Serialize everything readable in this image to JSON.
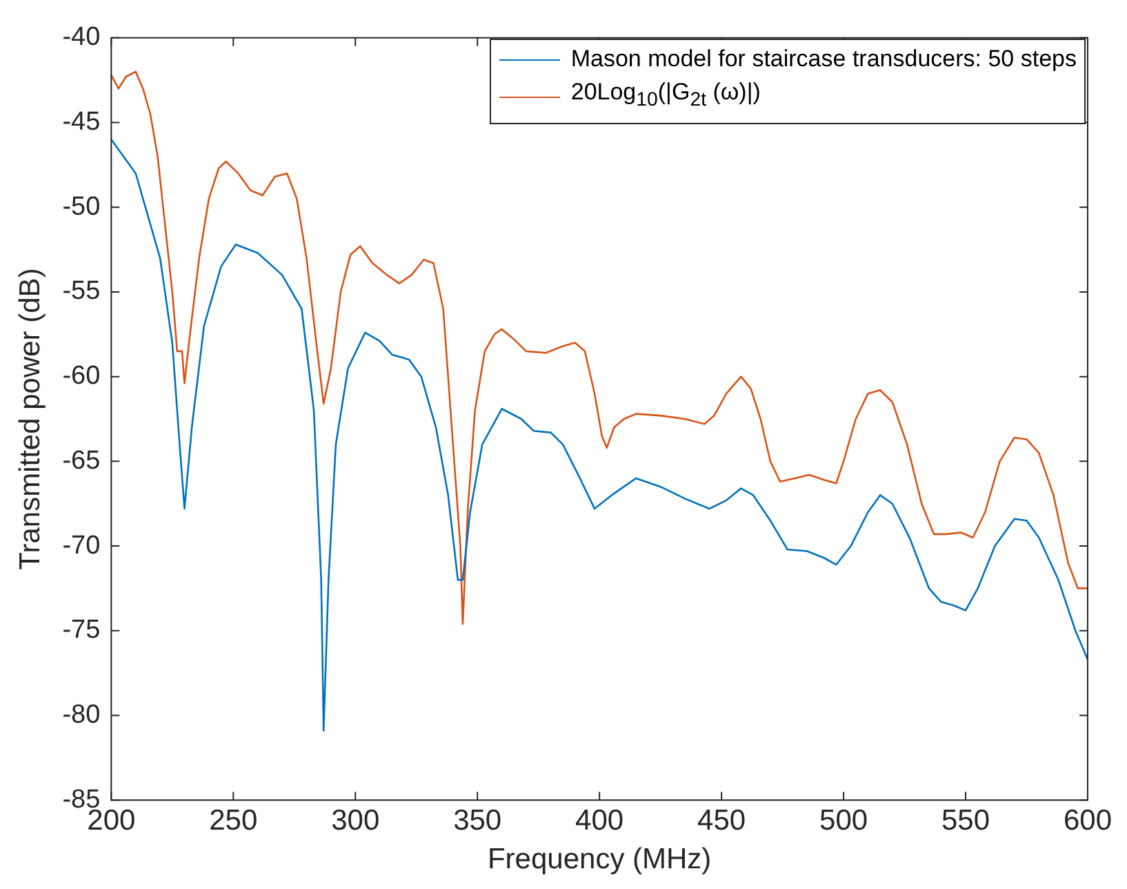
{
  "chart_data": {
    "type": "line",
    "xlabel": "Frequency (MHz)",
    "ylabel": "Transmitted power (dB)",
    "xlim": [
      200,
      600
    ],
    "xticks": [
      200,
      250,
      300,
      350,
      400,
      450,
      500,
      550,
      600
    ],
    "ylim": [
      -85,
      -40
    ],
    "yticks": [
      -85,
      -80,
      -75,
      -70,
      -65,
      -60,
      -55,
      -50,
      -45,
      -40
    ],
    "grid": false,
    "legend": "top right",
    "marker": "none",
    "line_style": "solid",
    "series": [
      {
        "name": "Mason model for staircase transducers: 50 steps",
        "color": "#0072bd",
        "x": [
          200,
          210,
          220,
          225,
          228,
          230,
          233,
          238,
          245,
          251,
          260,
          270,
          278,
          283,
          286,
          287,
          289,
          292,
          297,
          304,
          310,
          315,
          322,
          327,
          333,
          338,
          342,
          344,
          347,
          352,
          360,
          368,
          373,
          380,
          385,
          392,
          398,
          405,
          415,
          425,
          435,
          445,
          452,
          458,
          463,
          470,
          477,
          485,
          492,
          497,
          503,
          510,
          515,
          520,
          527,
          535,
          540,
          545,
          550,
          555,
          562,
          570,
          575,
          580,
          588,
          595,
          600
        ],
        "values": [
          -46,
          -48,
          -53,
          -58,
          -64,
          -67.8,
          -63,
          -57,
          -53.5,
          -52.2,
          -52.7,
          -54,
          -56,
          -62,
          -72,
          -80.9,
          -72,
          -64,
          -59.5,
          -57.4,
          -57.9,
          -58.7,
          -59,
          -60,
          -63,
          -67,
          -72,
          -72,
          -68,
          -64,
          -61.9,
          -62.5,
          -63.2,
          -63.3,
          -64,
          -66,
          -67.8,
          -67,
          -66,
          -66.5,
          -67.2,
          -67.8,
          -67.3,
          -66.6,
          -67,
          -68.5,
          -70.2,
          -70.3,
          -70.7,
          -71.1,
          -70,
          -68,
          -67,
          -67.5,
          -69.5,
          -72.5,
          -73.3,
          -73.5,
          -73.8,
          -72.5,
          -70,
          -68.4,
          -68.5,
          -69.5,
          -72,
          -75,
          -76.7
        ]
      },
      {
        "name": "20Log$_{10}$(|G$_{2t}$ (ω)|)",
        "color": "#d95319",
        "x": [
          200,
          203,
          206,
          210,
          213,
          216,
          219,
          222,
          225,
          227,
          229,
          230,
          232,
          236,
          240,
          244,
          247,
          252,
          257,
          262,
          267,
          272,
          276,
          280,
          284,
          287,
          290,
          294,
          298,
          302,
          307,
          313,
          318,
          323,
          328,
          332,
          336,
          340,
          343,
          344,
          346,
          349,
          353,
          357,
          360,
          365,
          370,
          378,
          385,
          390,
          394,
          398,
          401,
          403,
          406,
          410,
          415,
          425,
          435,
          443,
          447,
          452,
          458,
          462,
          466,
          470,
          474,
          480,
          486,
          492,
          497,
          500,
          505,
          510,
          515,
          520,
          526,
          532,
          537,
          542,
          548,
          553,
          558,
          564,
          570,
          575,
          580,
          586,
          592,
          596,
          600
        ],
        "values": [
          -42.2,
          -43,
          -42.3,
          -42,
          -43,
          -44.5,
          -47,
          -51,
          -55,
          -58.5,
          -58.5,
          -60.4,
          -57.8,
          -53,
          -49.5,
          -47.7,
          -47.3,
          -48,
          -49,
          -49.3,
          -48.2,
          -48,
          -49.5,
          -53,
          -58,
          -61.6,
          -59.5,
          -55,
          -52.8,
          -52.3,
          -53.3,
          -54,
          -54.5,
          -54,
          -53.1,
          -53.3,
          -56,
          -64,
          -70,
          -74.6,
          -68,
          -62,
          -58.5,
          -57.5,
          -57.2,
          -57.8,
          -58.5,
          -58.6,
          -58.2,
          -58,
          -58.5,
          -61,
          -63.5,
          -64.2,
          -63,
          -62.5,
          -62.2,
          -62.3,
          -62.5,
          -62.8,
          -62.3,
          -61,
          -60,
          -60.7,
          -62.5,
          -65,
          -66.2,
          -66,
          -65.8,
          -66.1,
          -66.3,
          -65,
          -62.5,
          -61,
          -60.8,
          -61.5,
          -64,
          -67.5,
          -69.3,
          -69.3,
          -69.2,
          -69.5,
          -68,
          -65,
          -63.6,
          -63.7,
          -64.5,
          -67,
          -71,
          -72.5,
          -72.5
        ]
      }
    ]
  }
}
